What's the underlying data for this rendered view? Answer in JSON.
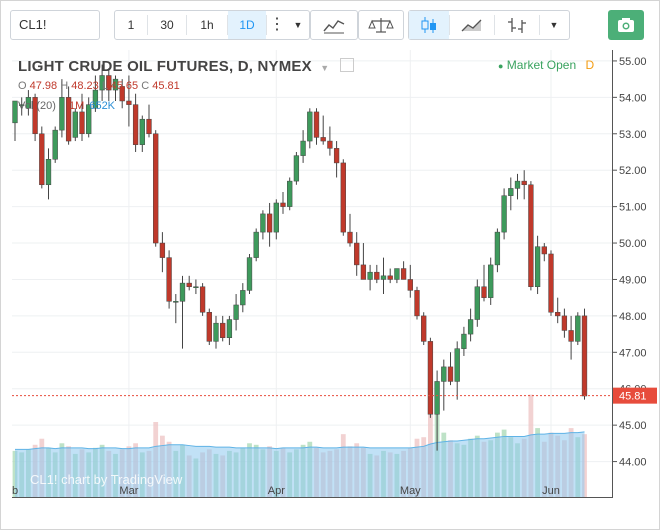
{
  "toolbar": {
    "symbol": "CL1!",
    "intervals": [
      {
        "label": "1",
        "active": false
      },
      {
        "label": "30",
        "active": false
      },
      {
        "label": "1h",
        "active": false
      },
      {
        "label": "1D",
        "active": true
      }
    ],
    "icons": [
      "more-vert-icon",
      "chevron-down-icon",
      "indicators-icon",
      "compare-scale-icon",
      "candles-icon",
      "line-chart-icon",
      "bars-icon",
      "chevron-down-icon",
      "camera-icon"
    ]
  },
  "legend": {
    "title": "LIGHT CRUDE OIL FUTURES, D, NYMEX",
    "o_label": "O",
    "o": "47.98",
    "h_label": "H",
    "h": "48.23",
    "l_label": "L",
    "l": "45.65",
    "c_label": "C",
    "c": "45.81",
    "volume_label": "Vol (20)",
    "volume_ma": "1M",
    "volume": "652K",
    "market_status": "Market Open",
    "market_badge": "D"
  },
  "watermark": "CL1! chart by TradingView",
  "colors": {
    "up": "#3e9a5c",
    "down": "#c0392b",
    "vol_up": "#a8d8b4",
    "vol_down": "#eec3c3",
    "vol_ma": "#8ec9ee",
    "price_tag": "#e74c3c",
    "market_open": "#39a25f"
  },
  "chart_data": {
    "type": "candlestick",
    "y_axis_ticks": [
      "44.00",
      "45.00",
      "46.00",
      "47.00",
      "48.00",
      "49.00",
      "50.00",
      "51.00",
      "52.00",
      "53.00",
      "54.00",
      "55.00"
    ],
    "ylim": [
      43.0,
      55.3
    ],
    "x_axis_labels": [
      {
        "label": "b",
        "index": -0.5
      },
      {
        "label": "Mar",
        "index": 17
      },
      {
        "label": "Apr",
        "index": 39
      },
      {
        "label": "May",
        "index": 59
      },
      {
        "label": "Jun",
        "index": 80
      }
    ],
    "last_price": "45.81",
    "candles": [
      [
        53.3,
        53.9,
        52.8,
        53.9
      ],
      [
        53.8,
        54.0,
        53.5,
        53.8
      ],
      [
        53.7,
        54.2,
        53.5,
        54.0
      ],
      [
        54.0,
        54.1,
        52.8,
        53.0
      ],
      [
        53.0,
        53.2,
        51.5,
        51.6
      ],
      [
        51.6,
        52.6,
        51.2,
        52.3
      ],
      [
        52.3,
        53.2,
        52.2,
        53.1
      ],
      [
        53.1,
        54.5,
        52.9,
        54.0
      ],
      [
        54.0,
        54.3,
        52.7,
        52.8
      ],
      [
        52.9,
        53.7,
        52.8,
        53.6
      ],
      [
        53.6,
        54.1,
        52.8,
        53.0
      ],
      [
        53.0,
        54.0,
        52.9,
        53.8
      ],
      [
        53.7,
        54.6,
        53.6,
        54.2
      ],
      [
        54.2,
        54.9,
        53.9,
        54.6
      ],
      [
        54.6,
        54.8,
        53.9,
        54.2
      ],
      [
        54.2,
        54.6,
        53.9,
        54.5
      ],
      [
        54.3,
        54.5,
        53.7,
        53.9
      ],
      [
        53.9,
        54.6,
        53.2,
        53.8
      ],
      [
        53.8,
        54.1,
        52.5,
        52.7
      ],
      [
        52.7,
        53.5,
        52.5,
        53.4
      ],
      [
        53.4,
        53.8,
        52.9,
        53.0
      ],
      [
        53.0,
        53.1,
        49.9,
        50.0
      ],
      [
        50.0,
        50.3,
        49.2,
        49.6
      ],
      [
        49.6,
        49.8,
        48.2,
        48.4
      ],
      [
        48.4,
        48.6,
        47.8,
        48.4
      ],
      [
        48.4,
        49.1,
        47.1,
        48.9
      ],
      [
        48.9,
        49.1,
        48.7,
        48.8
      ],
      [
        48.8,
        49.0,
        48.6,
        48.8
      ],
      [
        48.8,
        48.9,
        48.0,
        48.1
      ],
      [
        48.1,
        48.2,
        47.2,
        47.3
      ],
      [
        47.3,
        48.0,
        47.1,
        47.8
      ],
      [
        47.8,
        48.0,
        47.3,
        47.4
      ],
      [
        47.4,
        48.0,
        47.2,
        47.9
      ],
      [
        47.9,
        48.6,
        47.6,
        48.3
      ],
      [
        48.3,
        48.9,
        48.1,
        48.7
      ],
      [
        48.7,
        49.7,
        48.6,
        49.6
      ],
      [
        49.6,
        50.4,
        49.5,
        50.3
      ],
      [
        50.3,
        50.9,
        50.1,
        50.8
      ],
      [
        50.8,
        51.1,
        49.9,
        50.3
      ],
      [
        50.3,
        51.2,
        50.1,
        51.1
      ],
      [
        51.1,
        51.4,
        50.8,
        51.0
      ],
      [
        51.0,
        51.8,
        50.9,
        51.7
      ],
      [
        51.7,
        52.5,
        51.6,
        52.4
      ],
      [
        52.4,
        53.1,
        52.2,
        52.8
      ],
      [
        52.8,
        53.7,
        52.6,
        53.6
      ],
      [
        53.6,
        53.7,
        52.7,
        52.9
      ],
      [
        52.9,
        53.5,
        52.7,
        52.8
      ],
      [
        52.8,
        53.2,
        52.4,
        52.6
      ],
      [
        52.6,
        52.8,
        51.8,
        52.2
      ],
      [
        52.2,
        52.3,
        50.2,
        50.3
      ],
      [
        50.3,
        50.8,
        49.9,
        50.0
      ],
      [
        50.0,
        50.3,
        49.1,
        49.4
      ],
      [
        49.4,
        50.0,
        49.0,
        49.0
      ],
      [
        49.0,
        49.4,
        48.7,
        49.2
      ],
      [
        49.2,
        49.4,
        48.9,
        49.0
      ],
      [
        49.0,
        49.6,
        48.6,
        49.1
      ],
      [
        49.1,
        49.3,
        48.9,
        49.0
      ],
      [
        49.0,
        49.3,
        48.9,
        49.3
      ],
      [
        49.3,
        49.5,
        49.0,
        49.0
      ],
      [
        49.0,
        49.4,
        48.5,
        48.7
      ],
      [
        48.7,
        48.8,
        47.9,
        48.0
      ],
      [
        48.0,
        48.1,
        47.2,
        47.3
      ],
      [
        47.3,
        47.4,
        45.2,
        45.3
      ],
      [
        45.3,
        46.5,
        44.3,
        46.2
      ],
      [
        46.2,
        46.8,
        45.4,
        46.6
      ],
      [
        46.6,
        47.0,
        46.1,
        46.2
      ],
      [
        46.2,
        47.3,
        45.7,
        47.1
      ],
      [
        47.1,
        47.7,
        46.9,
        47.5
      ],
      [
        47.5,
        48.2,
        47.3,
        47.9
      ],
      [
        47.9,
        49.0,
        47.7,
        48.8
      ],
      [
        48.8,
        49.4,
        48.4,
        48.5
      ],
      [
        48.5,
        49.6,
        48.3,
        49.4
      ],
      [
        49.4,
        50.4,
        49.2,
        50.3
      ],
      [
        50.3,
        51.5,
        50.1,
        51.3
      ],
      [
        51.3,
        51.8,
        50.9,
        51.5
      ],
      [
        51.5,
        51.9,
        51.2,
        51.7
      ],
      [
        51.7,
        52.0,
        51.2,
        51.6
      ],
      [
        51.6,
        51.7,
        48.7,
        48.8
      ],
      [
        48.8,
        50.2,
        48.6,
        49.9
      ],
      [
        49.9,
        50.0,
        49.5,
        49.7
      ],
      [
        49.7,
        49.8,
        48.0,
        48.1
      ],
      [
        48.1,
        48.5,
        47.8,
        48.0
      ],
      [
        48.0,
        48.2,
        47.4,
        47.6
      ],
      [
        47.6,
        48.0,
        46.8,
        47.3
      ],
      [
        47.3,
        48.1,
        47.2,
        48.0
      ],
      [
        48.0,
        48.2,
        45.7,
        45.8
      ]
    ],
    "volume_units": "relative",
    "volumes": [
      0.62,
      0.6,
      0.64,
      0.7,
      0.78,
      0.66,
      0.6,
      0.72,
      0.68,
      0.58,
      0.64,
      0.6,
      0.66,
      0.7,
      0.62,
      0.58,
      0.64,
      0.68,
      0.72,
      0.6,
      0.62,
      1.0,
      0.82,
      0.74,
      0.62,
      0.7,
      0.56,
      0.52,
      0.6,
      0.64,
      0.58,
      0.56,
      0.62,
      0.6,
      0.66,
      0.72,
      0.7,
      0.64,
      0.68,
      0.62,
      0.66,
      0.6,
      0.64,
      0.7,
      0.74,
      0.66,
      0.6,
      0.62,
      0.64,
      0.84,
      0.68,
      0.72,
      0.66,
      0.58,
      0.56,
      0.62,
      0.6,
      0.58,
      0.62,
      0.66,
      0.78,
      0.8,
      1.24,
      1.12,
      0.86,
      0.76,
      0.72,
      0.7,
      0.78,
      0.82,
      0.74,
      0.76,
      0.86,
      0.9,
      0.8,
      0.72,
      0.78,
      1.36,
      0.92,
      0.74,
      0.86,
      0.82,
      0.76,
      0.92,
      0.8,
      0.84
    ],
    "volume_ma": [
      0.64,
      0.64,
      0.64,
      0.65,
      0.66,
      0.66,
      0.65,
      0.66,
      0.66,
      0.66,
      0.66,
      0.65,
      0.65,
      0.66,
      0.66,
      0.66,
      0.65,
      0.65,
      0.66,
      0.66,
      0.66,
      0.68,
      0.69,
      0.7,
      0.7,
      0.7,
      0.69,
      0.68,
      0.68,
      0.68,
      0.67,
      0.67,
      0.67,
      0.66,
      0.66,
      0.66,
      0.66,
      0.66,
      0.66,
      0.65,
      0.66,
      0.66,
      0.66,
      0.66,
      0.67,
      0.67,
      0.66,
      0.66,
      0.66,
      0.67,
      0.67,
      0.67,
      0.67,
      0.66,
      0.66,
      0.66,
      0.66,
      0.66,
      0.66,
      0.66,
      0.67,
      0.68,
      0.71,
      0.73,
      0.74,
      0.75,
      0.75,
      0.76,
      0.77,
      0.78,
      0.78,
      0.79,
      0.8,
      0.81,
      0.81,
      0.81,
      0.81,
      0.83,
      0.84,
      0.84,
      0.85,
      0.85,
      0.85,
      0.86,
      0.86,
      0.87
    ]
  }
}
